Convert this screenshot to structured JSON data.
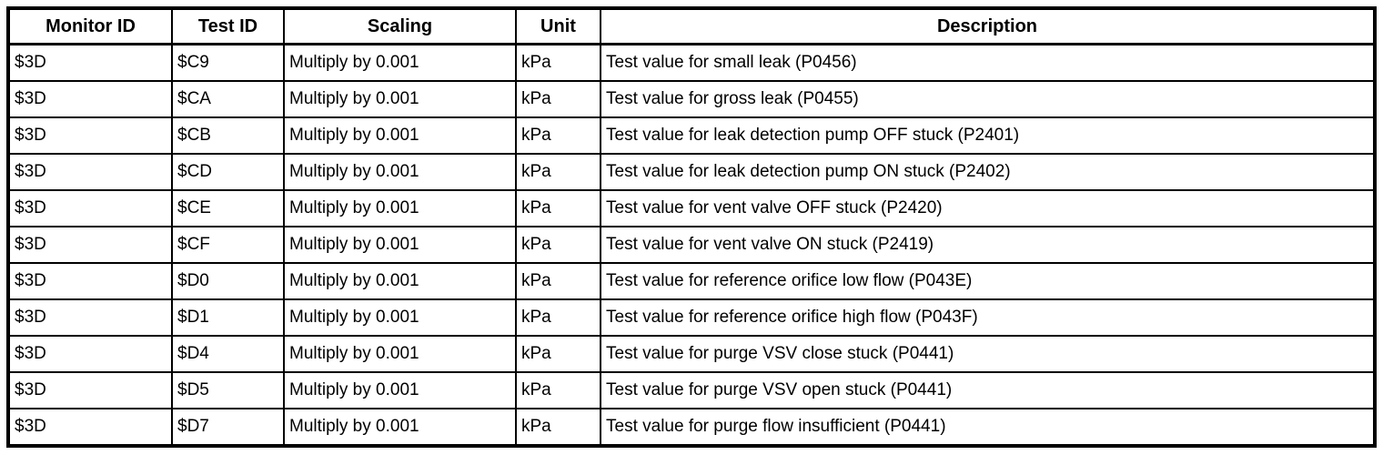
{
  "table": {
    "columns": [
      "Monitor ID",
      "Test ID",
      "Scaling",
      "Unit",
      "Description"
    ],
    "rows": [
      [
        "$3D",
        "$C9",
        "Multiply by 0.001",
        "kPa",
        "Test value for small leak (P0456)"
      ],
      [
        "$3D",
        "$CA",
        "Multiply by 0.001",
        "kPa",
        "Test value for gross leak (P0455)"
      ],
      [
        "$3D",
        "$CB",
        "Multiply by 0.001",
        "kPa",
        "Test value for leak detection pump OFF stuck (P2401)"
      ],
      [
        "$3D",
        "$CD",
        "Multiply by 0.001",
        "kPa",
        "Test value for leak detection pump ON stuck (P2402)"
      ],
      [
        "$3D",
        "$CE",
        "Multiply by 0.001",
        "kPa",
        "Test value for vent valve OFF stuck (P2420)"
      ],
      [
        "$3D",
        "$CF",
        "Multiply by 0.001",
        "kPa",
        "Test value for vent valve ON stuck (P2419)"
      ],
      [
        "$3D",
        "$D0",
        "Multiply by 0.001",
        "kPa",
        "Test value for reference orifice low flow (P043E)"
      ],
      [
        "$3D",
        "$D1",
        "Multiply by 0.001",
        "kPa",
        "Test value for reference orifice high flow (P043F)"
      ],
      [
        "$3D",
        "$D4",
        "Multiply by 0.001",
        "kPa",
        "Test value for purge VSV close stuck (P0441)"
      ],
      [
        "$3D",
        "$D5",
        "Multiply by 0.001",
        "kPa",
        "Test value for purge VSV open stuck (P0441)"
      ],
      [
        "$3D",
        "$D7",
        "Multiply by 0.001",
        "kPa",
        "Test value for purge flow insufficient (P0441)"
      ]
    ],
    "colors": {
      "border": "#000000",
      "text": "#000000",
      "background": "#ffffff"
    }
  }
}
